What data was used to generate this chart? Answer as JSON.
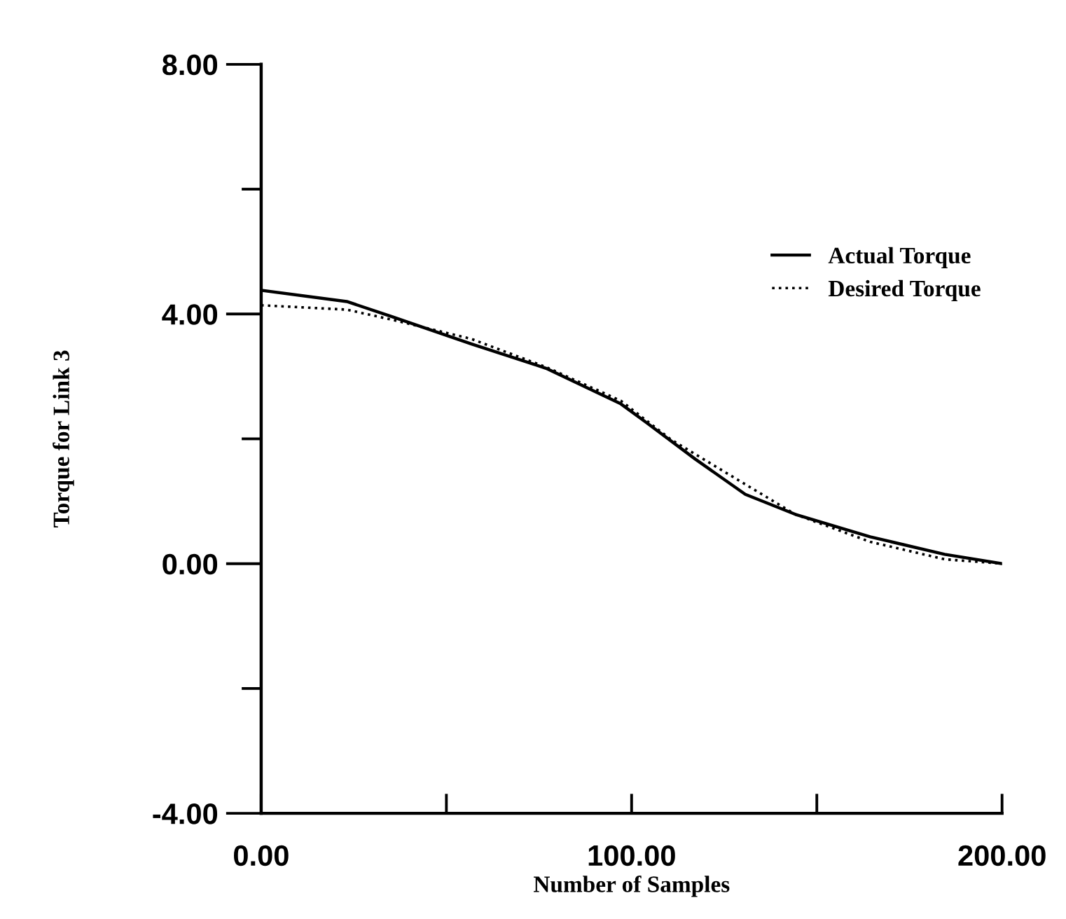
{
  "chart_data": {
    "type": "line",
    "xlabel": "Number of Samples",
    "ylabel": "Torque for Link 3",
    "xlim": [
      0,
      200
    ],
    "ylim": [
      -4,
      8
    ],
    "xticks": [
      {
        "value": 0,
        "label": "0.00"
      },
      {
        "value": 50,
        "label": null
      },
      {
        "value": 100,
        "label": "100.00"
      },
      {
        "value": 150,
        "label": null
      },
      {
        "value": 200,
        "label": "200.00"
      }
    ],
    "yticks": [
      {
        "value": -4,
        "label": "-4.00"
      },
      {
        "value": -2,
        "label": null
      },
      {
        "value": 0,
        "label": "0.00"
      },
      {
        "value": 2,
        "label": null
      },
      {
        "value": 4,
        "label": "4.00"
      },
      {
        "value": 6,
        "label": null
      },
      {
        "value": 8,
        "label": "8.00"
      }
    ],
    "legend": "right",
    "grid": false,
    "series": [
      {
        "name": "Actual Torque",
        "color": "#000000",
        "line_style": "solid",
        "x": [
          0,
          23.1,
          35.2,
          56.8,
          76.9,
          97.1,
          103.8,
          117.3,
          130.7,
          144.2,
          164.4,
          184.5,
          200
        ],
        "values": [
          4.38,
          4.2,
          3.96,
          3.52,
          3.13,
          2.56,
          2.27,
          1.67,
          1.11,
          0.79,
          0.43,
          0.15,
          0
        ]
      },
      {
        "name": "Desired Torque",
        "color": "#000000",
        "line_style": "dotted",
        "x": [
          0,
          23.1,
          35.2,
          56.8,
          76.9,
          97.1,
          110.6,
          124,
          144.2,
          164.4,
          184.5,
          200
        ],
        "values": [
          4.14,
          4.07,
          3.91,
          3.6,
          3.15,
          2.61,
          1.99,
          1.51,
          0.79,
          0.35,
          0.07,
          0
        ]
      }
    ]
  }
}
